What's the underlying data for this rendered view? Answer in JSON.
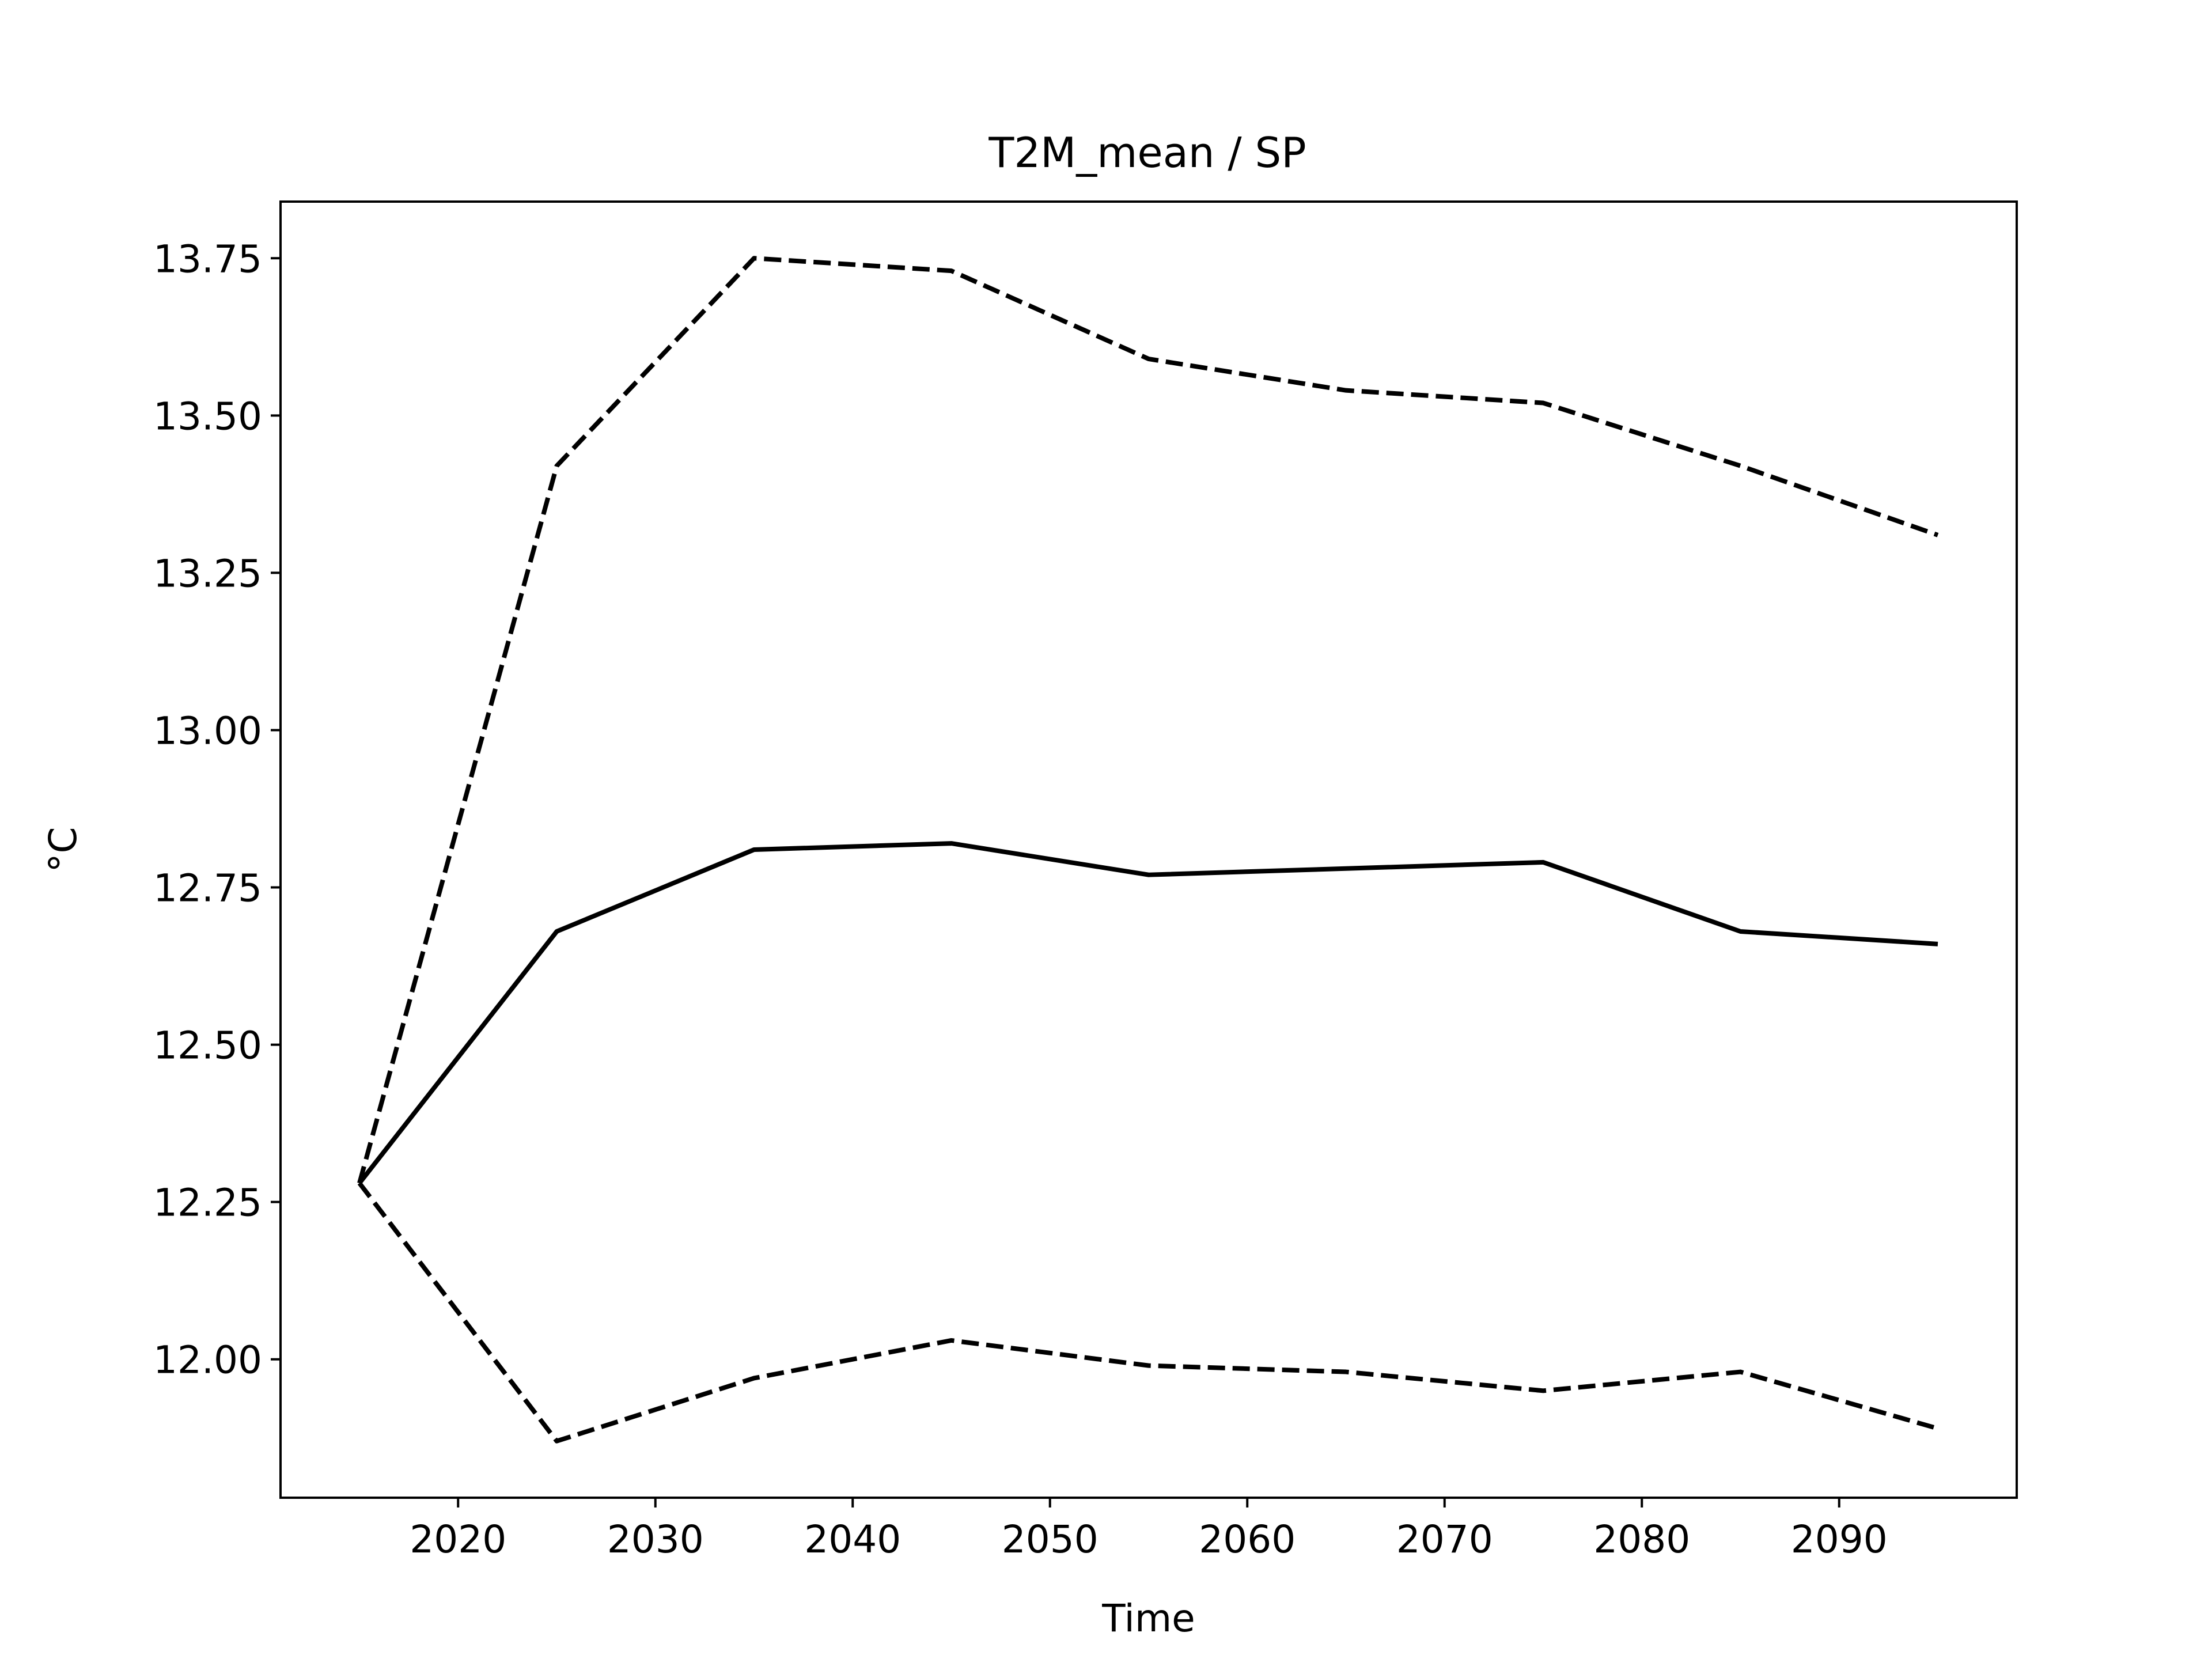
{
  "chart_data": {
    "type": "line",
    "title": "T2M_mean / SP",
    "xlabel": "Time",
    "ylabel": "°C",
    "x": [
      2015,
      2025,
      2035,
      2045,
      2055,
      2065,
      2075,
      2085,
      2095
    ],
    "series": [
      {
        "style": "solid",
        "values": [
          12.28,
          12.68,
          12.81,
          12.82,
          12.77,
          12.78,
          12.79,
          12.68,
          12.66
        ]
      },
      {
        "style": "dashed",
        "values": [
          12.28,
          13.42,
          13.75,
          13.73,
          13.59,
          13.54,
          13.52,
          13.42,
          13.31
        ]
      },
      {
        "style": "dashed",
        "values": [
          12.28,
          11.87,
          11.97,
          12.03,
          11.99,
          11.98,
          11.95,
          11.98,
          11.89
        ]
      }
    ],
    "xlim": [
      2011,
      2099
    ],
    "ylim": [
      11.78,
      13.84
    ],
    "xticks": [
      "2020",
      "2030",
      "2040",
      "2050",
      "2060",
      "2070",
      "2080",
      "2090"
    ],
    "yticks": [
      "12.00",
      "12.25",
      "12.50",
      "12.75",
      "13.00",
      "13.25",
      "13.50",
      "13.75"
    ],
    "legend": "none",
    "grid": false,
    "colors": {
      "line": "#000000",
      "axes": "#000000",
      "background": "#ffffff"
    }
  }
}
